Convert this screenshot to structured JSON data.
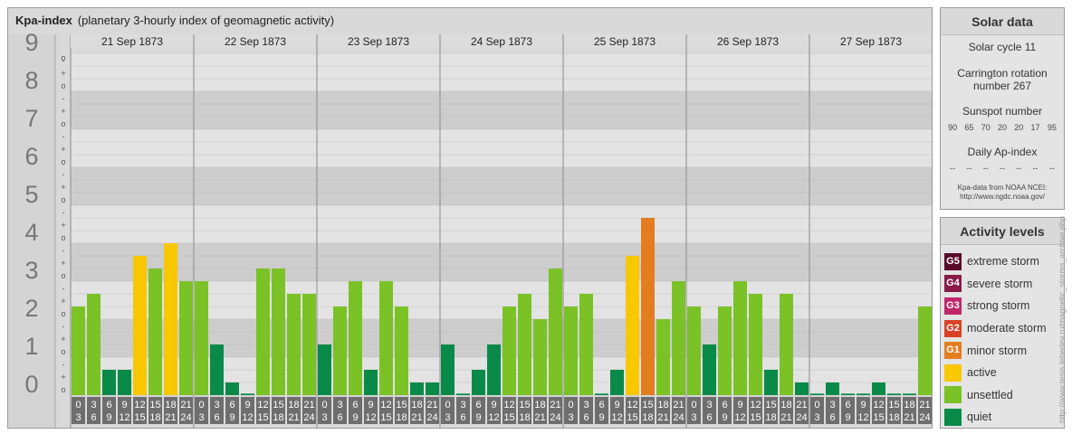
{
  "title": {
    "main": "Kpa-index",
    "subtitle": "(planetary 3-hourly index of geomagnetic activity)"
  },
  "chart_data": {
    "type": "bar",
    "ylim": [
      0,
      9
    ],
    "y_major_ticks": [
      "0",
      "1",
      "2",
      "3",
      "4",
      "5",
      "6",
      "7",
      "8",
      "9"
    ],
    "y_minor_marks": [
      "o",
      "+",
      "-"
    ],
    "days": [
      "21 Sep 1873",
      "22 Sep 1873",
      "23 Sep 1873",
      "24 Sep 1873",
      "25 Sep 1873",
      "26 Sep 1873",
      "27 Sep 1873"
    ],
    "interval_starts": [
      "0",
      "3",
      "6",
      "9",
      "12",
      "15",
      "18",
      "21"
    ],
    "interval_ends": [
      "3",
      "6",
      "9",
      "12",
      "15",
      "18",
      "21",
      "24"
    ],
    "values": [
      [
        2.333,
        2.667,
        0.667,
        0.667,
        3.667,
        3.333,
        4.0,
        3.0
      ],
      [
        3.0,
        1.333,
        0.333,
        0.0,
        3.333,
        3.333,
        2.667,
        2.667
      ],
      [
        1.333,
        2.333,
        3.0,
        0.667,
        3.0,
        2.333,
        0.333,
        0.333
      ],
      [
        1.333,
        0.0,
        0.667,
        1.333,
        2.333,
        2.667,
        2.0,
        3.333
      ],
      [
        2.333,
        2.667,
        0.0,
        0.667,
        3.667,
        4.667,
        2.0,
        3.0
      ],
      [
        2.333,
        1.333,
        2.333,
        3.0,
        2.667,
        0.667,
        2.667,
        0.333
      ],
      [
        0.0,
        0.333,
        0.0,
        0.0,
        0.333,
        0.0,
        0.0,
        2.333
      ]
    ],
    "colors": {
      "quiet": "#0a8a48",
      "unsettled": "#7ac226",
      "active": "#f8c700",
      "minor_storm": "#e47d1f"
    }
  },
  "solar": {
    "title": "Solar data",
    "cycle": "Solar cycle 11",
    "carrington": "Carrington rotation number 267",
    "sunspot_label": "Sunspot number",
    "sunspot_values": [
      "90",
      "65",
      "70",
      "20",
      "20",
      "17",
      "95"
    ],
    "ap_label": "Daily Ap-index",
    "ap_values": [
      "--",
      "--",
      "--",
      "--",
      "--",
      "--",
      "--"
    ],
    "source_line1": "Kpa-data from NOAA NCEI:",
    "source_line2": "http://www.ngdc.noaa.gov/"
  },
  "activity": {
    "title": "Activity levels",
    "levels": [
      {
        "code": "G5",
        "label": "extreme storm",
        "color": "#5a0b2a"
      },
      {
        "code": "G4",
        "label": "severe storm",
        "color": "#8a1a4a"
      },
      {
        "code": "G3",
        "label": "strong storm",
        "color": "#c2266a"
      },
      {
        "code": "G2",
        "label": "moderate storm",
        "color": "#d94125"
      },
      {
        "code": "G1",
        "label": "minor storm",
        "color": "#e47d1f"
      },
      {
        "code": "",
        "label": "active",
        "color": "#f8c700"
      },
      {
        "code": "",
        "label": "unsettled",
        "color": "#7ac226"
      },
      {
        "code": "",
        "label": "quiet",
        "color": "#0a8a48"
      }
    ]
  },
  "watermark": "http://www.tesis.lebedev.ru/magnetic_storms_archive.php"
}
